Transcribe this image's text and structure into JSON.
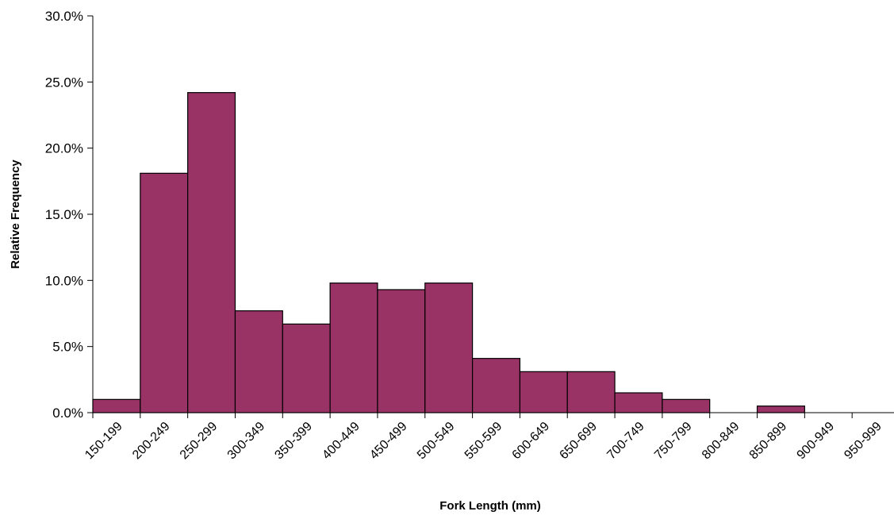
{
  "chart_data": {
    "type": "bar",
    "title": "",
    "xlabel": "Fork Length (mm)",
    "ylabel": "Relative Frequency",
    "ylim": [
      0,
      0.3
    ],
    "yticks": [
      "0.0%",
      "5.0%",
      "10.0%",
      "15.0%",
      "20.0%",
      "25.0%",
      "30.0%"
    ],
    "grid": false,
    "legend": "none",
    "bar_color": "#993366",
    "categories": [
      "150-199",
      "200-249",
      "250-299",
      "300-349",
      "350-399",
      "400-449",
      "450-499",
      "500-549",
      "550-599",
      "600-649",
      "650-699",
      "700-749",
      "750-799",
      "800-849",
      "850-899",
      "900-949",
      "950-999"
    ],
    "values": [
      0.01,
      0.181,
      0.242,
      0.077,
      0.067,
      0.098,
      0.093,
      0.098,
      0.041,
      0.031,
      0.031,
      0.015,
      0.01,
      0.0,
      0.005,
      0.0,
      0.0
    ]
  }
}
